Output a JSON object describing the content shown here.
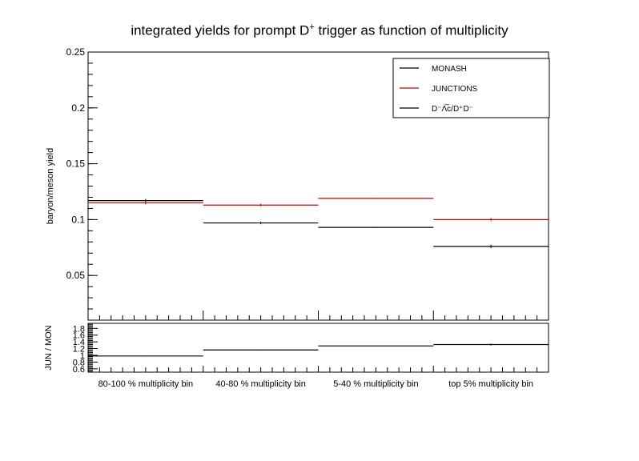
{
  "chart_data": [
    {
      "id": "main",
      "type": "step",
      "title_prefix": "integrated yields for prompt D",
      "title_sup": "+",
      "title_suffix": " trigger as function of multiplicity",
      "ylabel": "baryon/meson yield",
      "ylim": [
        0.01,
        0.25
      ],
      "yticks": [
        "0.05",
        "0.1",
        "0.15",
        "0.2",
        "0.25"
      ],
      "ytick_values": [
        0.05,
        0.1,
        0.15,
        0.2,
        0.25
      ],
      "categories": [
        "80-100 % multiplicity bin",
        "40-80 % multiplicity bin",
        "5-40 % multiplicity bin",
        "top 5% multiplicity bin"
      ],
      "series": [
        {
          "name": "MONASH",
          "color": "#000000",
          "values": [
            0.117,
            0.097,
            0.093,
            0.076
          ],
          "errors": [
            0.0015,
            0.0012,
            0.0005,
            0.0015
          ]
        },
        {
          "name": "JUNCTIONS",
          "color": "#cc0000",
          "values": [
            0.115,
            0.113,
            0.119,
            0.1
          ],
          "errors": [
            0.0015,
            0.0012,
            0.0005,
            0.0015
          ]
        }
      ],
      "legend": {
        "position": "top-right",
        "entries": [
          {
            "label": "MONASH",
            "color": "#000000"
          },
          {
            "label": "JUNCTIONS",
            "color": "#cc0000"
          },
          {
            "label": "D⁻Λ̅c/D⁺D⁻",
            "color": "#000000"
          }
        ]
      }
    },
    {
      "id": "ratio",
      "type": "step",
      "ylabel": "JUN / MON",
      "ylim": [
        0.5,
        1.95
      ],
      "yticks": [
        "0.6",
        "0.8",
        "1",
        "1.2",
        "1.4",
        "1.6",
        "1.8"
      ],
      "ytick_values": [
        0.6,
        0.8,
        1.0,
        1.2,
        1.4,
        1.6,
        1.8
      ],
      "categories": [
        "80-100 % multiplicity bin",
        "40-80 % multiplicity bin",
        "5-40 % multiplicity bin",
        "top 5% multiplicity bin"
      ],
      "series": [
        {
          "name": "",
          "color": "#000000",
          "values": [
            0.98,
            1.16,
            1.28,
            1.32
          ],
          "errors": [
            0.01,
            0.01,
            0.005,
            0.03
          ]
        }
      ]
    }
  ]
}
